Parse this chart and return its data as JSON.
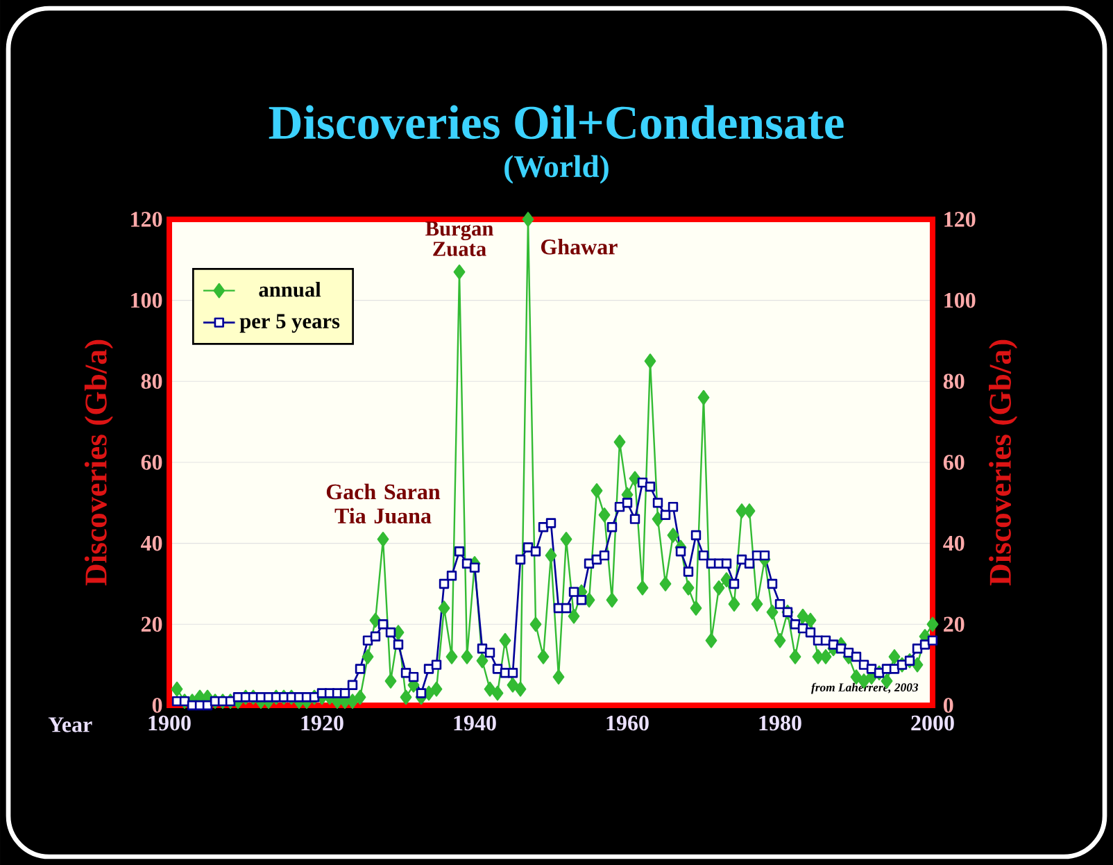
{
  "chart_data": {
    "type": "line",
    "title": "Discoveries Oil+Condensate",
    "subtitle": "(World)",
    "xlabel": "Year",
    "ylabel": "Discoveries (Gb/a)",
    "y2label": "Discoveries (Gb/a)",
    "x": [
      1901,
      1902,
      1903,
      1904,
      1905,
      1906,
      1907,
      1908,
      1909,
      1910,
      1911,
      1912,
      1913,
      1914,
      1915,
      1916,
      1917,
      1918,
      1919,
      1920,
      1921,
      1922,
      1923,
      1924,
      1925,
      1926,
      1927,
      1928,
      1929,
      1930,
      1931,
      1932,
      1933,
      1934,
      1935,
      1936,
      1937,
      1938,
      1939,
      1940,
      1941,
      1942,
      1943,
      1944,
      1945,
      1946,
      1947,
      1948,
      1949,
      1950,
      1951,
      1952,
      1953,
      1954,
      1955,
      1956,
      1957,
      1958,
      1959,
      1960,
      1961,
      1962,
      1963,
      1964,
      1965,
      1966,
      1967,
      1968,
      1969,
      1970,
      1971,
      1972,
      1973,
      1974,
      1975,
      1976,
      1977,
      1978,
      1979,
      1980,
      1981,
      1982,
      1983,
      1984,
      1985,
      1986,
      1987,
      1988,
      1989,
      1990,
      1991,
      1992,
      1993,
      1994,
      1995,
      1996,
      1997,
      1998,
      1999,
      2000
    ],
    "series": [
      {
        "name": "annual",
        "color": "#33bb33",
        "marker": "diamond",
        "values": [
          4,
          1,
          1,
          2,
          2,
          1,
          1,
          1,
          1,
          2,
          2,
          1,
          1,
          2,
          2,
          2,
          1,
          1,
          2,
          2,
          2,
          1,
          1,
          1,
          2,
          12,
          21,
          41,
          6,
          18,
          2,
          5,
          2,
          3,
          4,
          24,
          12,
          107,
          12,
          35,
          11,
          4,
          3,
          16,
          5,
          4,
          120,
          20,
          12,
          37,
          7,
          41,
          22,
          28,
          26,
          53,
          47,
          26,
          65,
          52,
          56,
          29,
          85,
          46,
          30,
          42,
          39,
          29,
          24,
          76,
          16,
          29,
          31,
          25,
          48,
          48,
          25,
          36,
          23,
          16,
          23,
          12,
          22,
          21,
          12,
          12,
          14,
          15,
          12,
          7,
          6,
          7,
          8,
          6,
          12,
          10,
          11,
          10,
          17,
          20
        ]
      },
      {
        "name": "per 5 years",
        "color": "#000099",
        "marker": "square",
        "values": [
          1,
          1,
          0,
          0,
          0,
          1,
          1,
          1,
          2,
          2,
          2,
          2,
          2,
          2,
          2,
          2,
          2,
          2,
          2,
          3,
          3,
          3,
          3,
          5,
          9,
          16,
          17,
          20,
          18,
          15,
          8,
          7,
          3,
          9,
          10,
          30,
          32,
          38,
          35,
          34,
          14,
          13,
          9,
          8,
          8,
          36,
          39,
          38,
          44,
          45,
          24,
          24,
          28,
          26,
          35,
          36,
          37,
          44,
          49,
          50,
          46,
          55,
          54,
          50,
          47,
          49,
          38,
          33,
          42,
          37,
          35,
          35,
          35,
          30,
          36,
          35,
          37,
          37,
          30,
          25,
          23,
          20,
          19,
          18,
          16,
          16,
          15,
          14,
          13,
          12,
          10,
          9,
          8,
          9,
          9,
          10,
          11,
          14,
          15,
          16
        ]
      }
    ],
    "xlim": [
      1900,
      2000
    ],
    "xticks": [
      1900,
      1920,
      1940,
      1960,
      1980,
      2000
    ],
    "ylim": [
      0,
      120
    ],
    "yticks": [
      0,
      20,
      40,
      60,
      80,
      100,
      120
    ],
    "y2lim": [
      0,
      120
    ],
    "y2ticks": [
      0,
      20,
      40,
      60,
      80,
      100,
      120
    ],
    "grid": "y",
    "legend": "top left",
    "line_style": "solid",
    "annotations": [
      {
        "text": "Gach Saran Tia Juana",
        "x": 1928,
        "y": 41
      },
      {
        "text": "Burgan Zuata",
        "x": 1938,
        "y": 107
      },
      {
        "text": "Ghawar",
        "x": 1947,
        "y": 120
      },
      "from Laherrere, 2003"
    ]
  }
}
